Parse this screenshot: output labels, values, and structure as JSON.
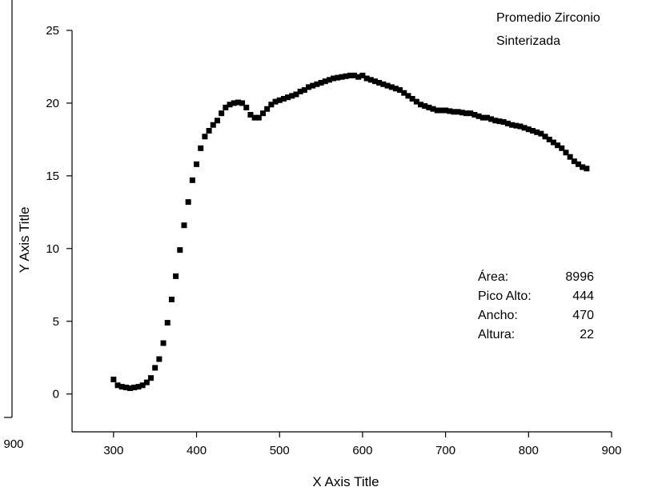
{
  "chart_data": {
    "type": "scatter",
    "legend_lines": [
      "Promedio Zirconio",
      "Sinterizada"
    ],
    "stats": [
      {
        "label": "Área:",
        "value": "8996"
      },
      {
        "label": "Pico Alto:",
        "value": "444"
      },
      {
        "label": "Ancho:",
        "value": "470"
      },
      {
        "label": "Altura:",
        "value": "22"
      }
    ],
    "x_label": "X Axis Title",
    "y_label": "Y Axis Title",
    "clipped_tick": "900",
    "xlim": [
      250,
      900
    ],
    "xticks": [
      300,
      400,
      500,
      600,
      700,
      800,
      900
    ],
    "ylim": [
      -2.6,
      25
    ],
    "yticks": [
      0,
      5,
      10,
      15,
      20,
      25
    ],
    "series": [
      {
        "color": "#000000",
        "x": [
          300,
          305,
          310,
          315,
          320,
          325,
          330,
          335,
          340,
          345,
          350,
          355,
          360,
          365,
          370,
          375,
          380,
          385,
          390,
          395,
          400,
          405,
          410,
          415,
          420,
          425,
          430,
          435,
          440,
          445,
          450,
          455,
          460,
          465,
          470,
          475,
          480,
          485,
          490,
          495,
          500,
          505,
          510,
          515,
          520,
          525,
          530,
          535,
          540,
          545,
          550,
          555,
          560,
          565,
          570,
          575,
          580,
          585,
          590,
          595,
          600,
          605,
          610,
          615,
          620,
          625,
          630,
          635,
          640,
          645,
          650,
          655,
          660,
          665,
          670,
          675,
          680,
          685,
          690,
          695,
          700,
          705,
          710,
          715,
          720,
          725,
          730,
          735,
          740,
          745,
          750,
          755,
          760,
          765,
          770,
          775,
          780,
          785,
          790,
          795,
          800,
          805,
          810,
          815,
          820,
          825,
          830,
          835,
          840,
          845,
          850,
          855,
          860,
          865,
          870
        ],
        "values": [
          1.0,
          0.6,
          0.5,
          0.45,
          0.4,
          0.45,
          0.5,
          0.6,
          0.8,
          1.1,
          1.8,
          2.4,
          3.5,
          4.9,
          6.5,
          8.1,
          9.9,
          11.6,
          13.2,
          14.7,
          15.8,
          16.9,
          17.7,
          18.1,
          18.5,
          18.8,
          19.3,
          19.7,
          19.9,
          20.0,
          20.05,
          20.0,
          19.7,
          19.2,
          19.0,
          19.0,
          19.3,
          19.6,
          19.9,
          20.1,
          20.2,
          20.3,
          20.4,
          20.5,
          20.6,
          20.8,
          20.9,
          21.1,
          21.2,
          21.3,
          21.4,
          21.5,
          21.6,
          21.7,
          21.75,
          21.8,
          21.85,
          21.9,
          21.9,
          21.8,
          21.9,
          21.7,
          21.6,
          21.5,
          21.4,
          21.3,
          21.2,
          21.1,
          21.0,
          20.9,
          20.7,
          20.5,
          20.3,
          20.1,
          19.9,
          19.8,
          19.7,
          19.6,
          19.5,
          19.5,
          19.5,
          19.45,
          19.4,
          19.4,
          19.35,
          19.3,
          19.3,
          19.2,
          19.1,
          19.0,
          19.0,
          18.9,
          18.8,
          18.75,
          18.7,
          18.6,
          18.5,
          18.45,
          18.4,
          18.3,
          18.2,
          18.1,
          18.0,
          17.9,
          17.7,
          17.5,
          17.3,
          17.1,
          16.9,
          16.6,
          16.3,
          16.0,
          15.8,
          15.6,
          15.5
        ]
      }
    ]
  }
}
